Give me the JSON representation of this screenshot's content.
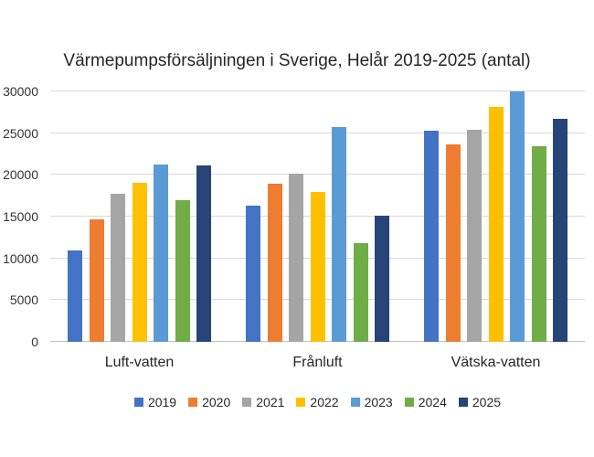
{
  "chart_data": {
    "type": "bar",
    "title": "Värmepumpsförsäljningen i Sverige, Helår 2019-2025 (antal)",
    "xlabel": "",
    "ylabel": "",
    "categories": [
      "Luft-vatten",
      "Frånluft",
      "Vätska-vatten"
    ],
    "series": [
      {
        "name": "2019",
        "color": "#4472C4",
        "values": [
          11000,
          16300,
          25300
        ]
      },
      {
        "name": "2020",
        "color": "#ED7D31",
        "values": [
          14700,
          18900,
          23600
        ]
      },
      {
        "name": "2021",
        "color": "#A5A5A5",
        "values": [
          17700,
          20100,
          25400
        ]
      },
      {
        "name": "2022",
        "color": "#FFC000",
        "values": [
          19100,
          18000,
          28100
        ]
      },
      {
        "name": "2023",
        "color": "#5B9BD5",
        "values": [
          21200,
          25700,
          30000
        ]
      },
      {
        "name": "2024",
        "color": "#70AD47",
        "values": [
          17000,
          11800,
          23400
        ]
      },
      {
        "name": "2025",
        "color": "#264478",
        "values": [
          21100,
          15100,
          26700
        ]
      }
    ],
    "ylim": [
      0,
      30000
    ],
    "yticks": [
      0,
      5000,
      10000,
      15000,
      20000,
      25000,
      30000
    ],
    "grid": true,
    "legend_position": "bottom",
    "legend_entries": [
      "2019",
      "2020",
      "2021",
      "2022",
      "2023",
      "2024",
      "2025"
    ]
  },
  "colors": {
    "background": "#FFFFFF",
    "gridline": "#D9D9D9",
    "axis_line": "#BFBFBF",
    "title_text": "#262626",
    "tick_text": "#333333"
  }
}
